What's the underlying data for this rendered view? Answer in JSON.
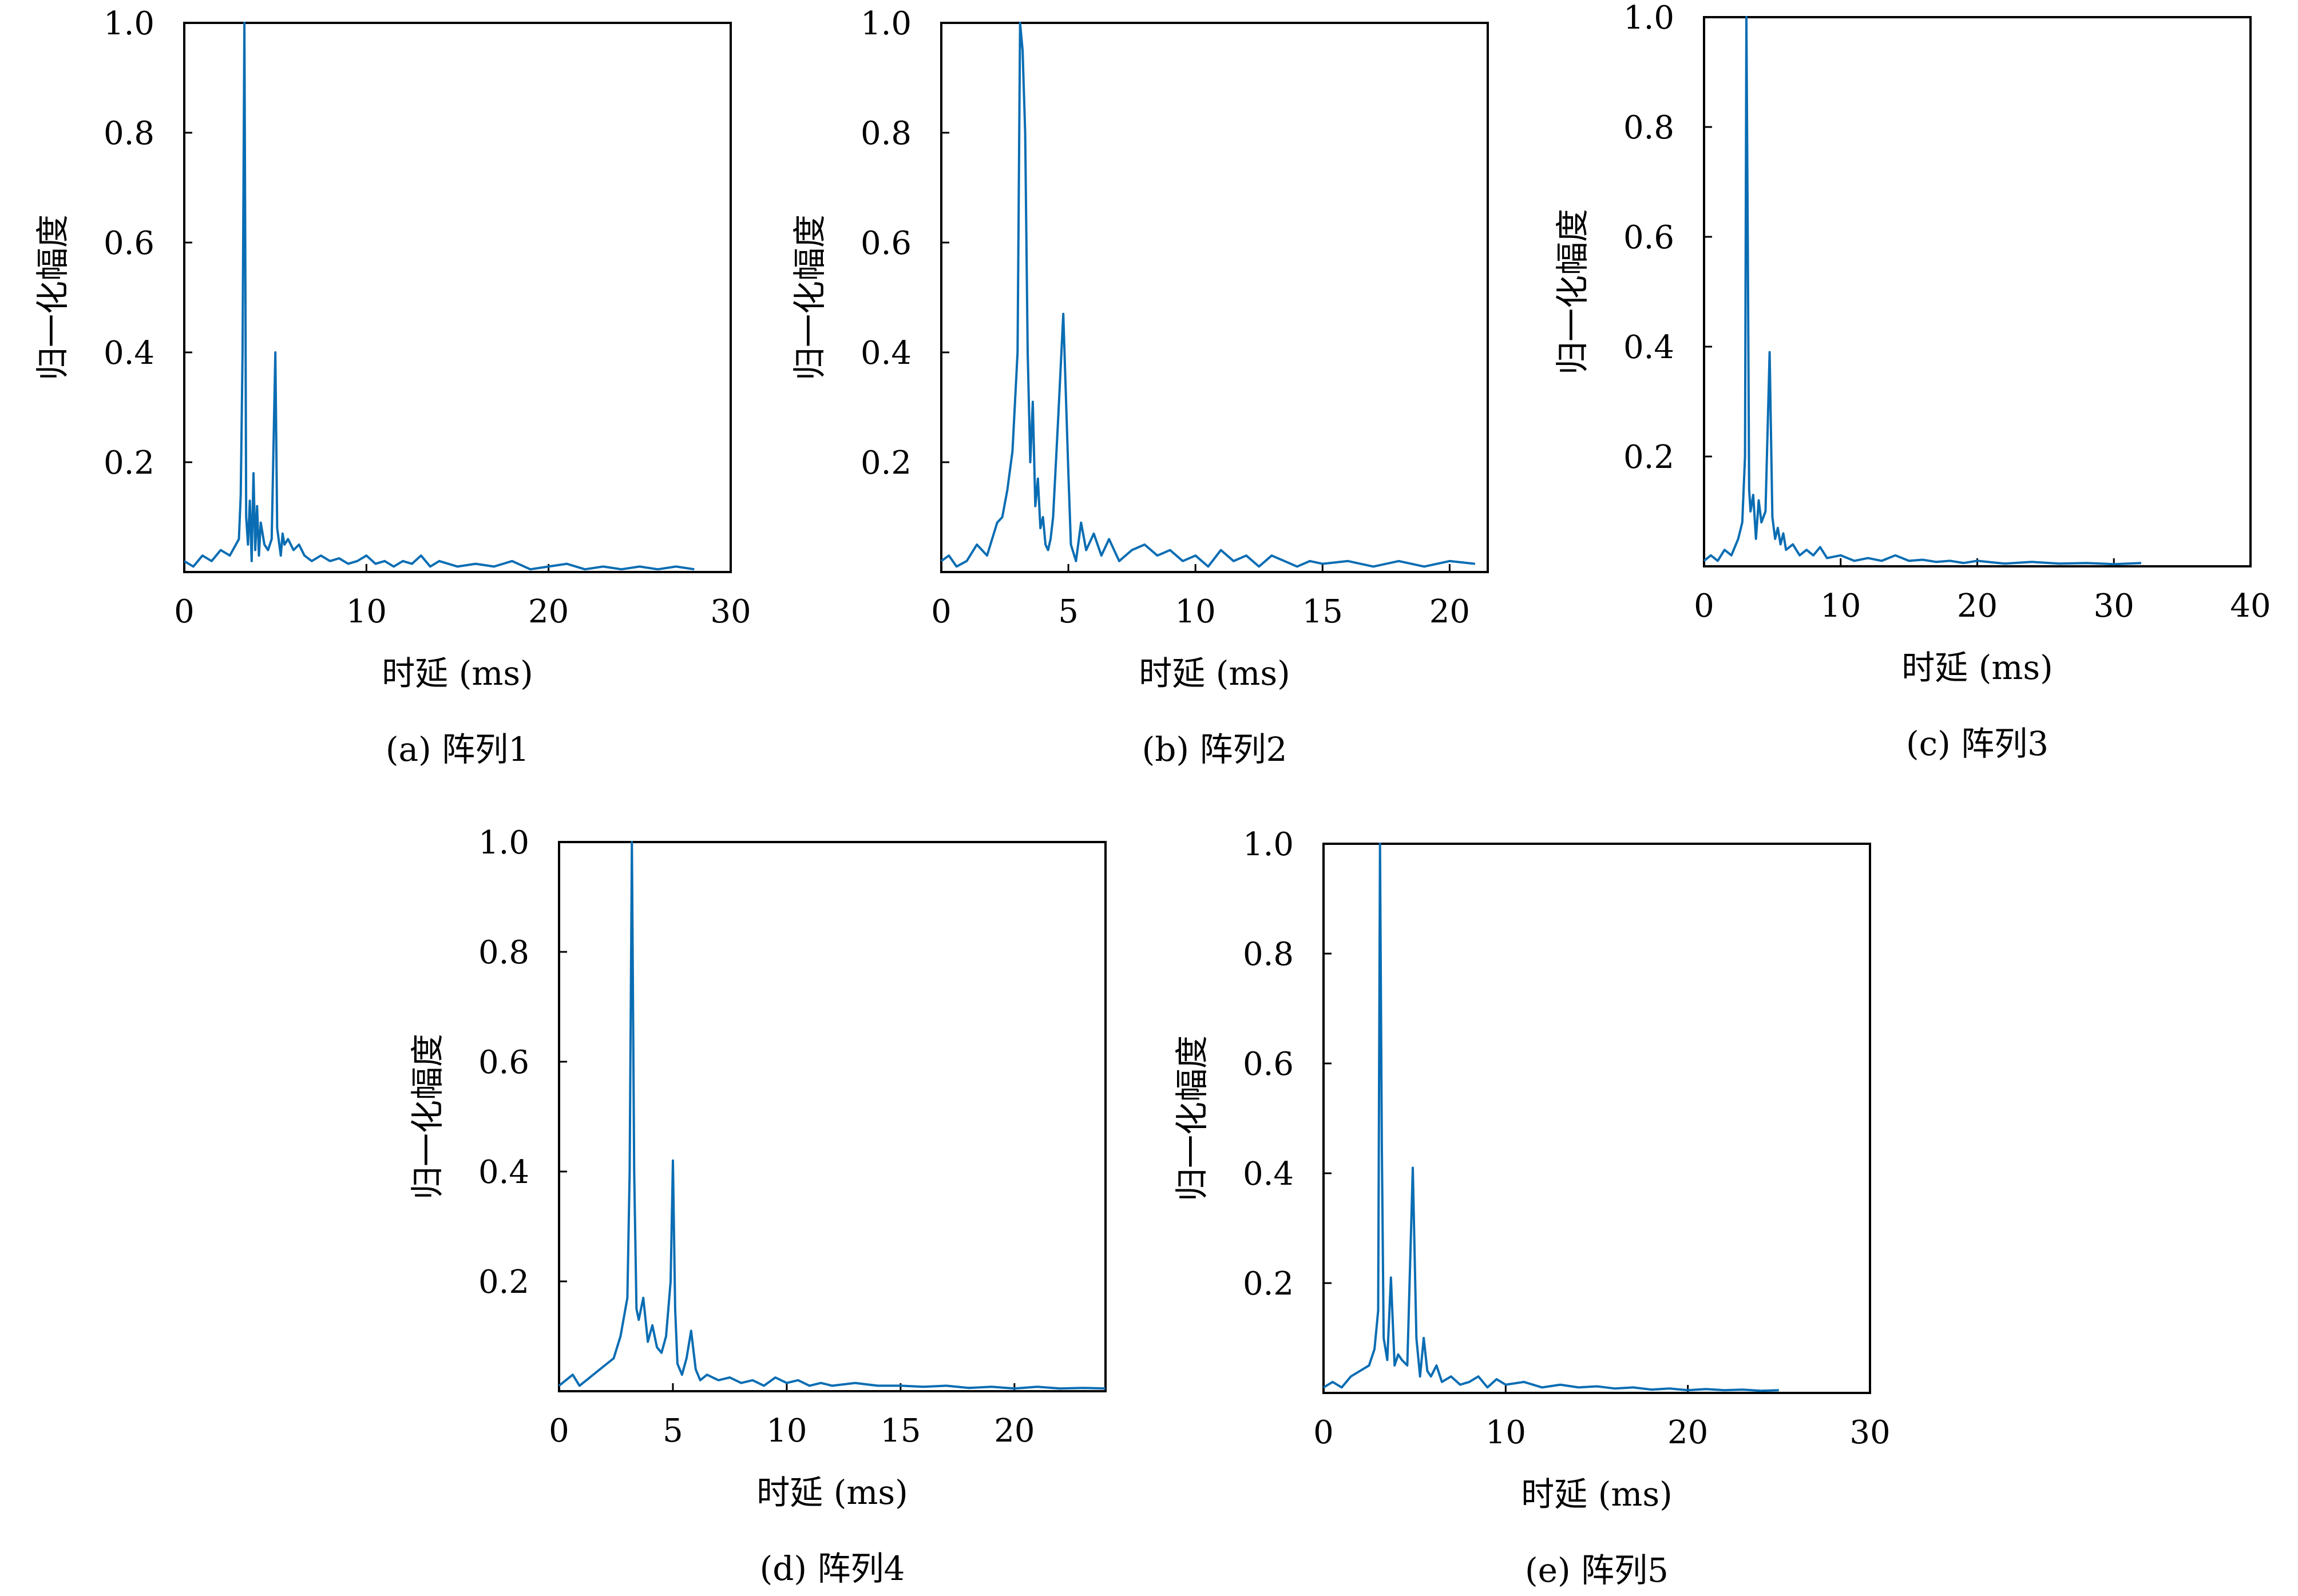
{
  "figure": {
    "line_color": "#0a6db3",
    "frame_color": "#000000"
  },
  "chart_data": [
    {
      "type": "line",
      "caption": "(a) 阵列1",
      "xlabel": "时延 (ms)",
      "ylabel": "归一化幅度",
      "xlim": [
        0,
        30
      ],
      "ylim": [
        0,
        1.0
      ],
      "x_ticks": [
        0,
        10,
        20,
        30
      ],
      "y_ticks": [
        0.2,
        0.4,
        0.6,
        0.8,
        1.0
      ],
      "series": [
        {
          "x": [
            0,
            0.5,
            1.0,
            1.5,
            2.0,
            2.5,
            3.0,
            3.1,
            3.2,
            3.3,
            3.35,
            3.4,
            3.5,
            3.6,
            3.7,
            3.8,
            3.9,
            4.0,
            4.1,
            4.2,
            4.4,
            4.6,
            4.8,
            5.0,
            5.1,
            5.3,
            5.4,
            5.5,
            5.7,
            6.0,
            6.3,
            6.6,
            7,
            7.5,
            8,
            8.5,
            9,
            9.5,
            10,
            10.5,
            11,
            11.5,
            12,
            12.5,
            13,
            13.5,
            14,
            15,
            16,
            17,
            18,
            19,
            20,
            21,
            22,
            23,
            24,
            25,
            26,
            27,
            28
          ],
          "y": [
            0.02,
            0.01,
            0.03,
            0.02,
            0.04,
            0.03,
            0.06,
            0.14,
            0.4,
            1.0,
            0.6,
            0.1,
            0.05,
            0.13,
            0.02,
            0.18,
            0.04,
            0.12,
            0.03,
            0.09,
            0.05,
            0.04,
            0.06,
            0.4,
            0.08,
            0.03,
            0.07,
            0.05,
            0.06,
            0.04,
            0.05,
            0.03,
            0.02,
            0.03,
            0.02,
            0.025,
            0.015,
            0.02,
            0.03,
            0.015,
            0.02,
            0.01,
            0.02,
            0.015,
            0.03,
            0.01,
            0.02,
            0.01,
            0.015,
            0.01,
            0.02,
            0.005,
            0.01,
            0.015,
            0.005,
            0.01,
            0.005,
            0.01,
            0.005,
            0.01,
            0.005
          ]
        }
      ]
    },
    {
      "type": "line",
      "caption": "(b) 阵列2",
      "xlabel": "时延 (ms)",
      "ylabel": "归一化幅度",
      "xlim": [
        0,
        21.5
      ],
      "ylim": [
        0,
        1.0
      ],
      "x_ticks": [
        0,
        5,
        10,
        15,
        20
      ],
      "y_ticks": [
        0.2,
        0.4,
        0.6,
        0.8,
        1.0
      ],
      "series": [
        {
          "x": [
            0,
            0.3,
            0.6,
            1.0,
            1.4,
            1.8,
            2.0,
            2.2,
            2.4,
            2.6,
            2.8,
            3.0,
            3.1,
            3.2,
            3.3,
            3.4,
            3.5,
            3.6,
            3.7,
            3.8,
            3.9,
            4.0,
            4.1,
            4.2,
            4.3,
            4.4,
            4.6,
            4.8,
            5.0,
            5.1,
            5.3,
            5.5,
            5.7,
            6.0,
            6.3,
            6.6,
            7.0,
            7.5,
            8.0,
            8.5,
            9.0,
            9.5,
            10.0,
            10.5,
            11,
            11.5,
            12,
            12.5,
            13,
            13.5,
            14,
            14.5,
            15,
            16,
            17,
            18,
            19,
            20,
            21
          ],
          "y": [
            0.02,
            0.03,
            0.01,
            0.02,
            0.05,
            0.03,
            0.06,
            0.09,
            0.1,
            0.15,
            0.22,
            0.4,
            1.0,
            0.95,
            0.8,
            0.4,
            0.2,
            0.31,
            0.12,
            0.17,
            0.08,
            0.1,
            0.05,
            0.04,
            0.06,
            0.1,
            0.28,
            0.47,
            0.18,
            0.05,
            0.02,
            0.09,
            0.04,
            0.07,
            0.03,
            0.06,
            0.02,
            0.04,
            0.05,
            0.03,
            0.04,
            0.02,
            0.03,
            0.01,
            0.04,
            0.02,
            0.03,
            0.01,
            0.03,
            0.02,
            0.01,
            0.02,
            0.015,
            0.02,
            0.01,
            0.02,
            0.01,
            0.02,
            0.015
          ]
        }
      ]
    },
    {
      "type": "line",
      "caption": "(c) 阵列3",
      "xlabel": "时延 (ms)",
      "ylabel": "归一化幅度",
      "xlim": [
        0,
        40
      ],
      "ylim": [
        0,
        1.0
      ],
      "x_ticks": [
        0,
        10,
        20,
        30,
        40
      ],
      "y_ticks": [
        0.2,
        0.4,
        0.6,
        0.8,
        1.0
      ],
      "series": [
        {
          "x": [
            0,
            0.5,
            1.0,
            1.5,
            2.0,
            2.5,
            2.8,
            3.0,
            3.1,
            3.2,
            3.3,
            3.4,
            3.6,
            3.8,
            4.0,
            4.2,
            4.5,
            4.8,
            5.0,
            5.2,
            5.4,
            5.6,
            5.8,
            6.0,
            6.5,
            7,
            7.5,
            8,
            8.5,
            9,
            10,
            11,
            12,
            13,
            14,
            15,
            16,
            17,
            18,
            19,
            20,
            22,
            24,
            26,
            28,
            30,
            32
          ],
          "y": [
            0.01,
            0.02,
            0.01,
            0.03,
            0.02,
            0.05,
            0.08,
            0.2,
            1.0,
            0.6,
            0.14,
            0.1,
            0.13,
            0.05,
            0.12,
            0.08,
            0.1,
            0.39,
            0.09,
            0.05,
            0.07,
            0.04,
            0.06,
            0.03,
            0.04,
            0.02,
            0.03,
            0.02,
            0.035,
            0.015,
            0.02,
            0.01,
            0.015,
            0.01,
            0.02,
            0.01,
            0.012,
            0.008,
            0.01,
            0.006,
            0.01,
            0.005,
            0.008,
            0.005,
            0.006,
            0.004,
            0.006
          ]
        }
      ]
    },
    {
      "type": "line",
      "caption": "(d) 阵列4",
      "xlabel": "时延 (ms)",
      "ylabel": "归一化幅度",
      "xlim": [
        0,
        24
      ],
      "ylim": [
        0,
        1.0
      ],
      "x_ticks": [
        0,
        5,
        10,
        15,
        20
      ],
      "y_ticks": [
        0.2,
        0.4,
        0.6,
        0.8,
        1.0
      ],
      "series": [
        {
          "x": [
            0,
            0.3,
            0.6,
            0.9,
            1.2,
            1.5,
            1.8,
            2.1,
            2.4,
            2.7,
            3.0,
            3.1,
            3.2,
            3.3,
            3.4,
            3.5,
            3.7,
            3.9,
            4.1,
            4.3,
            4.5,
            4.7,
            4.9,
            5.0,
            5.1,
            5.2,
            5.4,
            5.6,
            5.8,
            6.0,
            6.2,
            6.5,
            7.0,
            7.5,
            8.0,
            8.5,
            9,
            9.5,
            10,
            10.5,
            11,
            11.5,
            12,
            13,
            14,
            15,
            16,
            17,
            18,
            19,
            20,
            21,
            22,
            23,
            24
          ],
          "y": [
            0.01,
            0.02,
            0.03,
            0.01,
            0.02,
            0.03,
            0.04,
            0.05,
            0.06,
            0.1,
            0.17,
            0.4,
            1.0,
            0.4,
            0.15,
            0.13,
            0.17,
            0.09,
            0.12,
            0.08,
            0.07,
            0.1,
            0.2,
            0.42,
            0.15,
            0.05,
            0.03,
            0.06,
            0.11,
            0.04,
            0.02,
            0.03,
            0.02,
            0.025,
            0.015,
            0.02,
            0.01,
            0.025,
            0.015,
            0.02,
            0.01,
            0.015,
            0.01,
            0.015,
            0.01,
            0.01,
            0.008,
            0.01,
            0.006,
            0.008,
            0.005,
            0.008,
            0.005,
            0.006,
            0.005
          ]
        }
      ]
    },
    {
      "type": "line",
      "caption": "(e) 阵列5",
      "xlabel": "时延 (ms)",
      "ylabel": "归一化幅度",
      "xlim": [
        0,
        30
      ],
      "ylim": [
        0,
        1.0
      ],
      "x_ticks": [
        0,
        10,
        20,
        30
      ],
      "y_ticks": [
        0.2,
        0.4,
        0.6,
        0.8,
        1.0
      ],
      "series": [
        {
          "x": [
            0,
            0.5,
            1.0,
            1.5,
            2.0,
            2.5,
            2.8,
            3.0,
            3.1,
            3.2,
            3.3,
            3.5,
            3.7,
            3.9,
            4.1,
            4.3,
            4.6,
            4.9,
            5.1,
            5.3,
            5.5,
            5.7,
            5.9,
            6.2,
            6.5,
            7,
            7.5,
            8,
            8.5,
            9,
            9.5,
            10,
            11,
            12,
            13,
            14,
            15,
            16,
            17,
            18,
            19,
            20,
            21,
            22,
            23,
            24,
            25
          ],
          "y": [
            0.01,
            0.02,
            0.01,
            0.03,
            0.04,
            0.05,
            0.08,
            0.15,
            1.0,
            0.45,
            0.1,
            0.06,
            0.21,
            0.05,
            0.07,
            0.06,
            0.05,
            0.41,
            0.1,
            0.03,
            0.1,
            0.04,
            0.03,
            0.05,
            0.02,
            0.03,
            0.015,
            0.02,
            0.03,
            0.01,
            0.025,
            0.015,
            0.02,
            0.01,
            0.015,
            0.01,
            0.012,
            0.008,
            0.01,
            0.006,
            0.008,
            0.005,
            0.007,
            0.005,
            0.006,
            0.004,
            0.005
          ]
        }
      ]
    }
  ]
}
